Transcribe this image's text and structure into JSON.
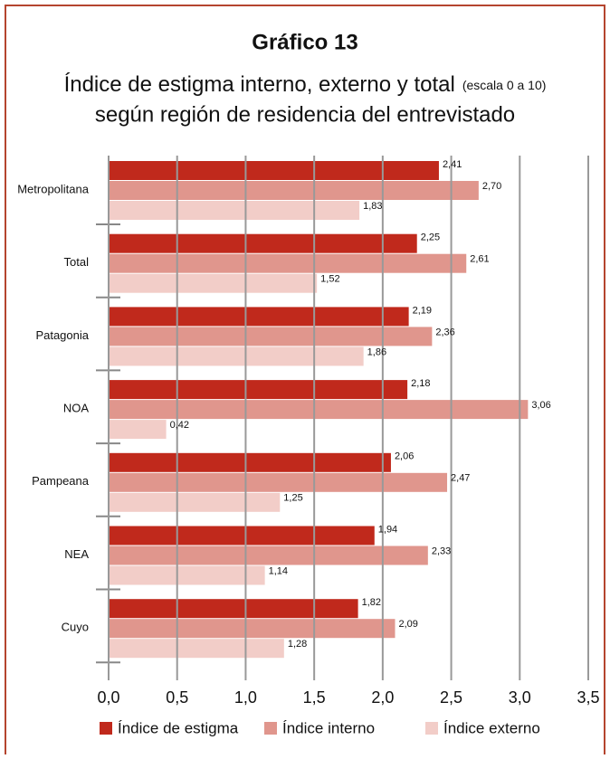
{
  "chart_data": {
    "type": "bar",
    "orientation": "horizontal",
    "title": "Gráfico 13",
    "subtitle": "Índice de estigma interno, externo y total",
    "subtitle_note": "(escala 0 a 10)",
    "subtitle_line2": "según región de residencia del entrevistado",
    "categories": [
      "Metropolitana",
      "Total",
      "Patagonia",
      "NOA",
      "Pampeana",
      "NEA",
      "Cuyo"
    ],
    "series": [
      {
        "name": "Índice de estigma",
        "color": "#c0291c",
        "values": [
          2.41,
          2.25,
          2.19,
          2.18,
          2.06,
          1.94,
          1.82
        ],
        "value_labels": [
          "2,41",
          "2,25",
          "2,19",
          "2,18",
          "2,06",
          "1,94",
          "1,82"
        ]
      },
      {
        "name": "Índice interno",
        "color": "#e0968d",
        "values": [
          2.7,
          2.61,
          2.36,
          3.06,
          2.47,
          2.33,
          2.09
        ],
        "value_labels": [
          "2,70",
          "2,61",
          "2,36",
          "3,06",
          "2,47",
          "2,33",
          "2,09"
        ]
      },
      {
        "name": "Índice externo",
        "color": "#f2cdc8",
        "values": [
          1.83,
          1.52,
          1.86,
          0.42,
          1.25,
          1.14,
          1.28
        ],
        "value_labels": [
          "1,83",
          "1,52",
          "1,86",
          "0,42",
          "1,25",
          "1,14",
          "1,28"
        ]
      }
    ],
    "xlim": [
      0,
      3.5
    ],
    "xticks": [
      {
        "value": 0,
        "label": "0,0"
      },
      {
        "value": 0.5,
        "label": "0,5"
      },
      {
        "value": 1,
        "label": "1,0"
      },
      {
        "value": 1.5,
        "label": "1,5"
      },
      {
        "value": 2,
        "label": "2,0"
      },
      {
        "value": 2.5,
        "label": "2,5"
      },
      {
        "value": 3,
        "label": "3,0"
      },
      {
        "value": 3.5,
        "label": "3,5"
      }
    ],
    "grid": true,
    "legend": "bottom"
  }
}
